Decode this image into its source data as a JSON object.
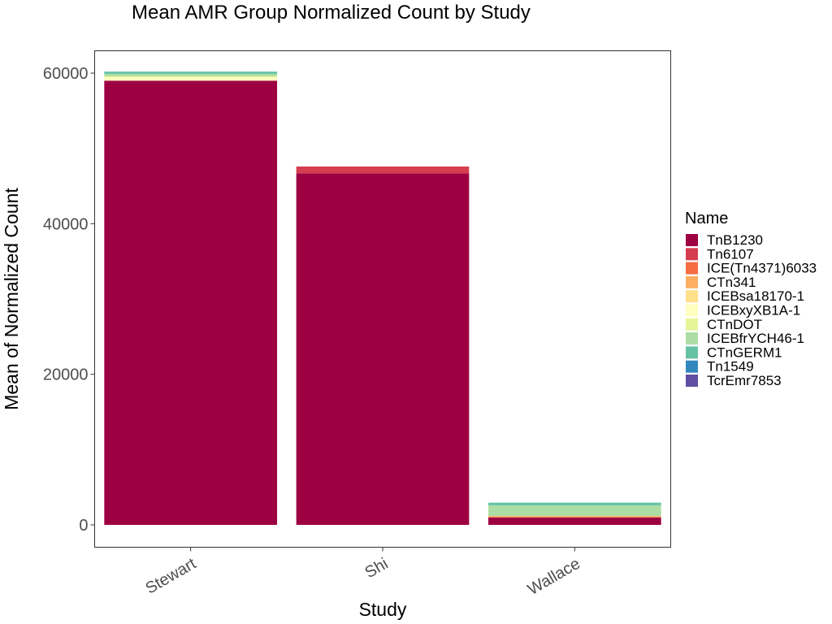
{
  "chart_data": {
    "type": "bar",
    "stacked": true,
    "title": "Mean AMR Group Normalized Count by Study",
    "xlabel": "Study",
    "ylabel": "Mean of Normalized Count",
    "categories": [
      "Stewart",
      "Shi",
      "Wallace"
    ],
    "ylim": [
      -3000,
      63000
    ],
    "yticks": [
      0,
      20000,
      40000,
      60000
    ],
    "grid": false,
    "legend": {
      "title": "Name",
      "position": "right"
    },
    "series": [
      {
        "name": "TnB1230",
        "color": "#9E0142",
        "values": [
          59000,
          46700,
          1000
        ]
      },
      {
        "name": "Tn6107",
        "color": "#D53E4F",
        "values": [
          0,
          900,
          0
        ]
      },
      {
        "name": "ICE(Tn4371)6033",
        "color": "#F46D43",
        "values": [
          0,
          0,
          0
        ]
      },
      {
        "name": "CTn341",
        "color": "#FDAE61",
        "values": [
          0,
          0,
          200
        ]
      },
      {
        "name": "ICEBsa18170-1",
        "color": "#FEE08B",
        "values": [
          0,
          0,
          0
        ]
      },
      {
        "name": "ICEBxyXB1A-1",
        "color": "#FFFFBF",
        "values": [
          450,
          0,
          0
        ]
      },
      {
        "name": "CTnDOT",
        "color": "#E6F598",
        "values": [
          150,
          0,
          0
        ]
      },
      {
        "name": "ICEBfrYCH46-1",
        "color": "#ABDDA4",
        "values": [
          300,
          0,
          1400
        ]
      },
      {
        "name": "CTnGERM1",
        "color": "#66C2A5",
        "values": [
          300,
          0,
          350
        ]
      },
      {
        "name": "Tn1549",
        "color": "#3288BD",
        "values": [
          0,
          0,
          0
        ]
      },
      {
        "name": "TcrEmr7853",
        "color": "#5E4FA2",
        "values": [
          0,
          0,
          0
        ]
      }
    ]
  }
}
